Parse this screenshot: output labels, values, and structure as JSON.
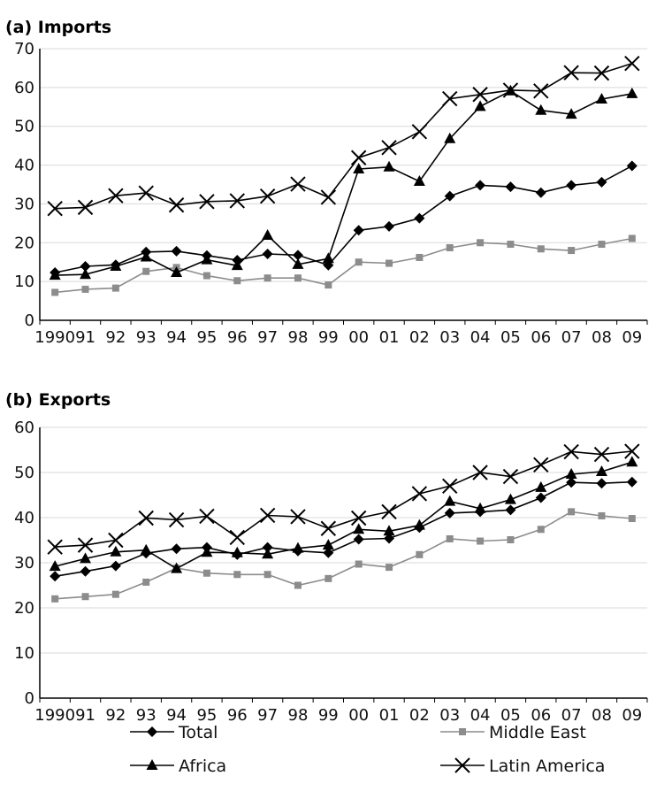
{
  "chart_data": [
    {
      "type": "line",
      "title": "(a) Imports",
      "ylim": [
        0,
        70
      ],
      "yticks": [
        0,
        10,
        20,
        30,
        40,
        50,
        60,
        70
      ],
      "categories": [
        "1990",
        "91",
        "92",
        "93",
        "94",
        "95",
        "96",
        "97",
        "98",
        "99",
        "00",
        "01",
        "02",
        "03",
        "04",
        "05",
        "06",
        "07",
        "08",
        "09"
      ],
      "grid": "horizontal",
      "series": [
        {
          "name": "Total",
          "color": "#000000",
          "marker": "diamond",
          "values": [
            12.3,
            13.9,
            14.3,
            17.6,
            17.8,
            16.7,
            15.5,
            17.1,
            16.8,
            14.2,
            23.2,
            24.2,
            26.3,
            32.0,
            34.8,
            34.4,
            32.9,
            34.8,
            35.6,
            39.8
          ]
        },
        {
          "name": "Middle East",
          "color": "#8c8c8c",
          "marker": "square",
          "values": [
            7.2,
            8.0,
            8.3,
            12.6,
            13.6,
            11.5,
            10.2,
            10.9,
            10.9,
            9.1,
            15.0,
            14.7,
            16.2,
            18.7,
            20.0,
            19.6,
            18.4,
            18.0,
            19.6,
            21.1
          ]
        },
        {
          "name": "Africa",
          "color": "#000000",
          "marker": "triangle",
          "values": [
            11.6,
            11.8,
            13.9,
            16.3,
            12.3,
            15.6,
            14.1,
            21.9,
            14.4,
            15.9,
            39.0,
            39.5,
            35.8,
            46.8,
            55.1,
            59.1,
            54.1,
            53.1,
            57.0,
            58.4
          ]
        },
        {
          "name": "Latin America",
          "color": "#000000",
          "marker": "x",
          "values": [
            28.8,
            29.1,
            32.1,
            32.8,
            29.7,
            30.6,
            30.8,
            32.0,
            35.1,
            31.7,
            41.9,
            44.5,
            48.6,
            57.1,
            58.2,
            59.3,
            59.1,
            63.8,
            63.7,
            66.2
          ]
        }
      ]
    },
    {
      "type": "line",
      "title": "(b) Exports",
      "ylim": [
        0,
        60
      ],
      "yticks": [
        0,
        10,
        20,
        30,
        40,
        50,
        60
      ],
      "categories": [
        "1990",
        "91",
        "92",
        "93",
        "94",
        "95",
        "96",
        "97",
        "98",
        "99",
        "00",
        "01",
        "02",
        "03",
        "04",
        "05",
        "06",
        "07",
        "08",
        "09"
      ],
      "grid": "horizontal",
      "series": [
        {
          "name": "Total",
          "color": "#000000",
          "marker": "diamond",
          "values": [
            27.0,
            28.1,
            29.3,
            32.1,
            33.1,
            33.4,
            31.8,
            33.4,
            32.6,
            32.2,
            35.2,
            35.4,
            37.8,
            41.0,
            41.3,
            41.7,
            44.4,
            47.8,
            47.6,
            47.9
          ]
        },
        {
          "name": "Middle East",
          "color": "#8c8c8c",
          "marker": "square",
          "values": [
            22.0,
            22.5,
            23.0,
            25.7,
            28.8,
            27.7,
            27.4,
            27.4,
            25.0,
            26.5,
            29.7,
            29.0,
            31.8,
            35.3,
            34.8,
            35.1,
            37.4,
            41.3,
            40.4,
            39.8
          ]
        },
        {
          "name": "Africa",
          "color": "#000000",
          "marker": "triangle",
          "values": [
            29.2,
            30.9,
            32.4,
            32.8,
            28.7,
            32.3,
            32.2,
            31.9,
            33.2,
            33.9,
            37.4,
            37.0,
            38.3,
            43.6,
            42.0,
            44.0,
            46.7,
            49.6,
            50.2,
            52.3
          ]
        },
        {
          "name": "Latin America",
          "color": "#000000",
          "marker": "x",
          "values": [
            33.5,
            33.9,
            35.0,
            39.9,
            39.5,
            40.3,
            35.6,
            40.5,
            40.2,
            37.6,
            39.9,
            41.3,
            45.3,
            47.0,
            50.0,
            49.1,
            51.7,
            54.6,
            54.0,
            54.7
          ]
        }
      ]
    }
  ],
  "legend": {
    "position": "bottom",
    "items": [
      {
        "label": "Total",
        "color": "#000000",
        "marker": "diamond"
      },
      {
        "label": "Middle East",
        "color": "#8c8c8c",
        "marker": "square"
      },
      {
        "label": "Africa",
        "color": "#000000",
        "marker": "triangle"
      },
      {
        "label": "Latin America",
        "color": "#000000",
        "marker": "x"
      }
    ]
  }
}
